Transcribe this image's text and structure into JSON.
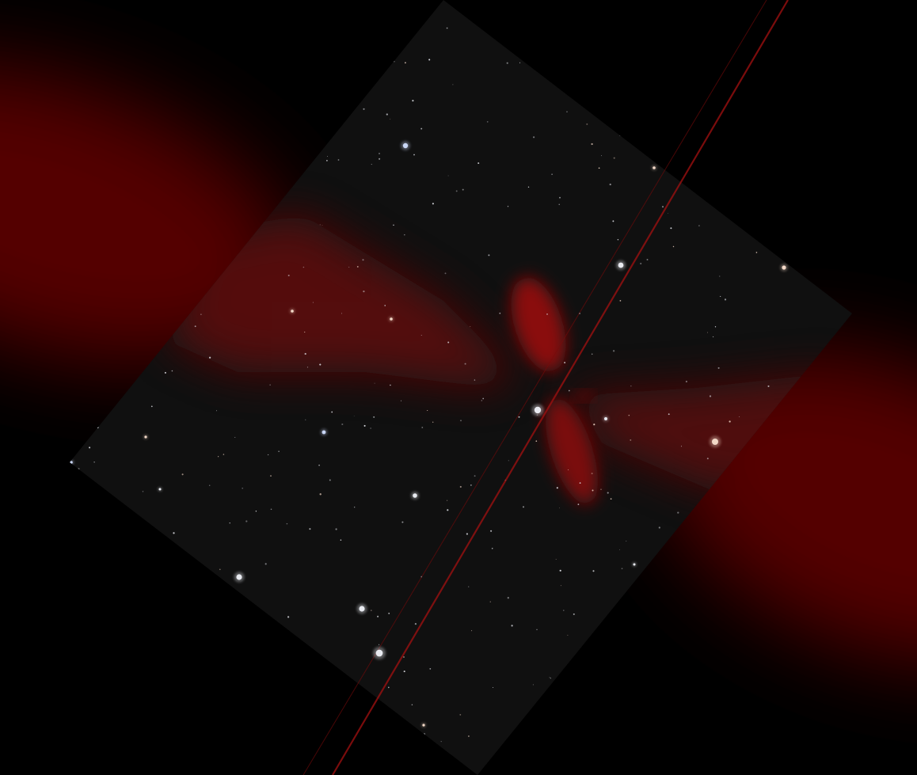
{
  "scene": {
    "kind": "astronomy-sky-field",
    "colors": {
      "background": "#000000",
      "panel": "#111111",
      "glow": "#6a0606",
      "glow_core": "#8a0c0c",
      "spike": "#b01414",
      "star": "#e8eaf0",
      "star_warm": "#f3d9c8",
      "star_cool": "#c9d6f5"
    },
    "elements": {
      "field_panel": "rotated-sky-image-tile",
      "nebula": "red-bipolar-nebula",
      "diffraction_spike": "red-diffraction-spike"
    }
  }
}
